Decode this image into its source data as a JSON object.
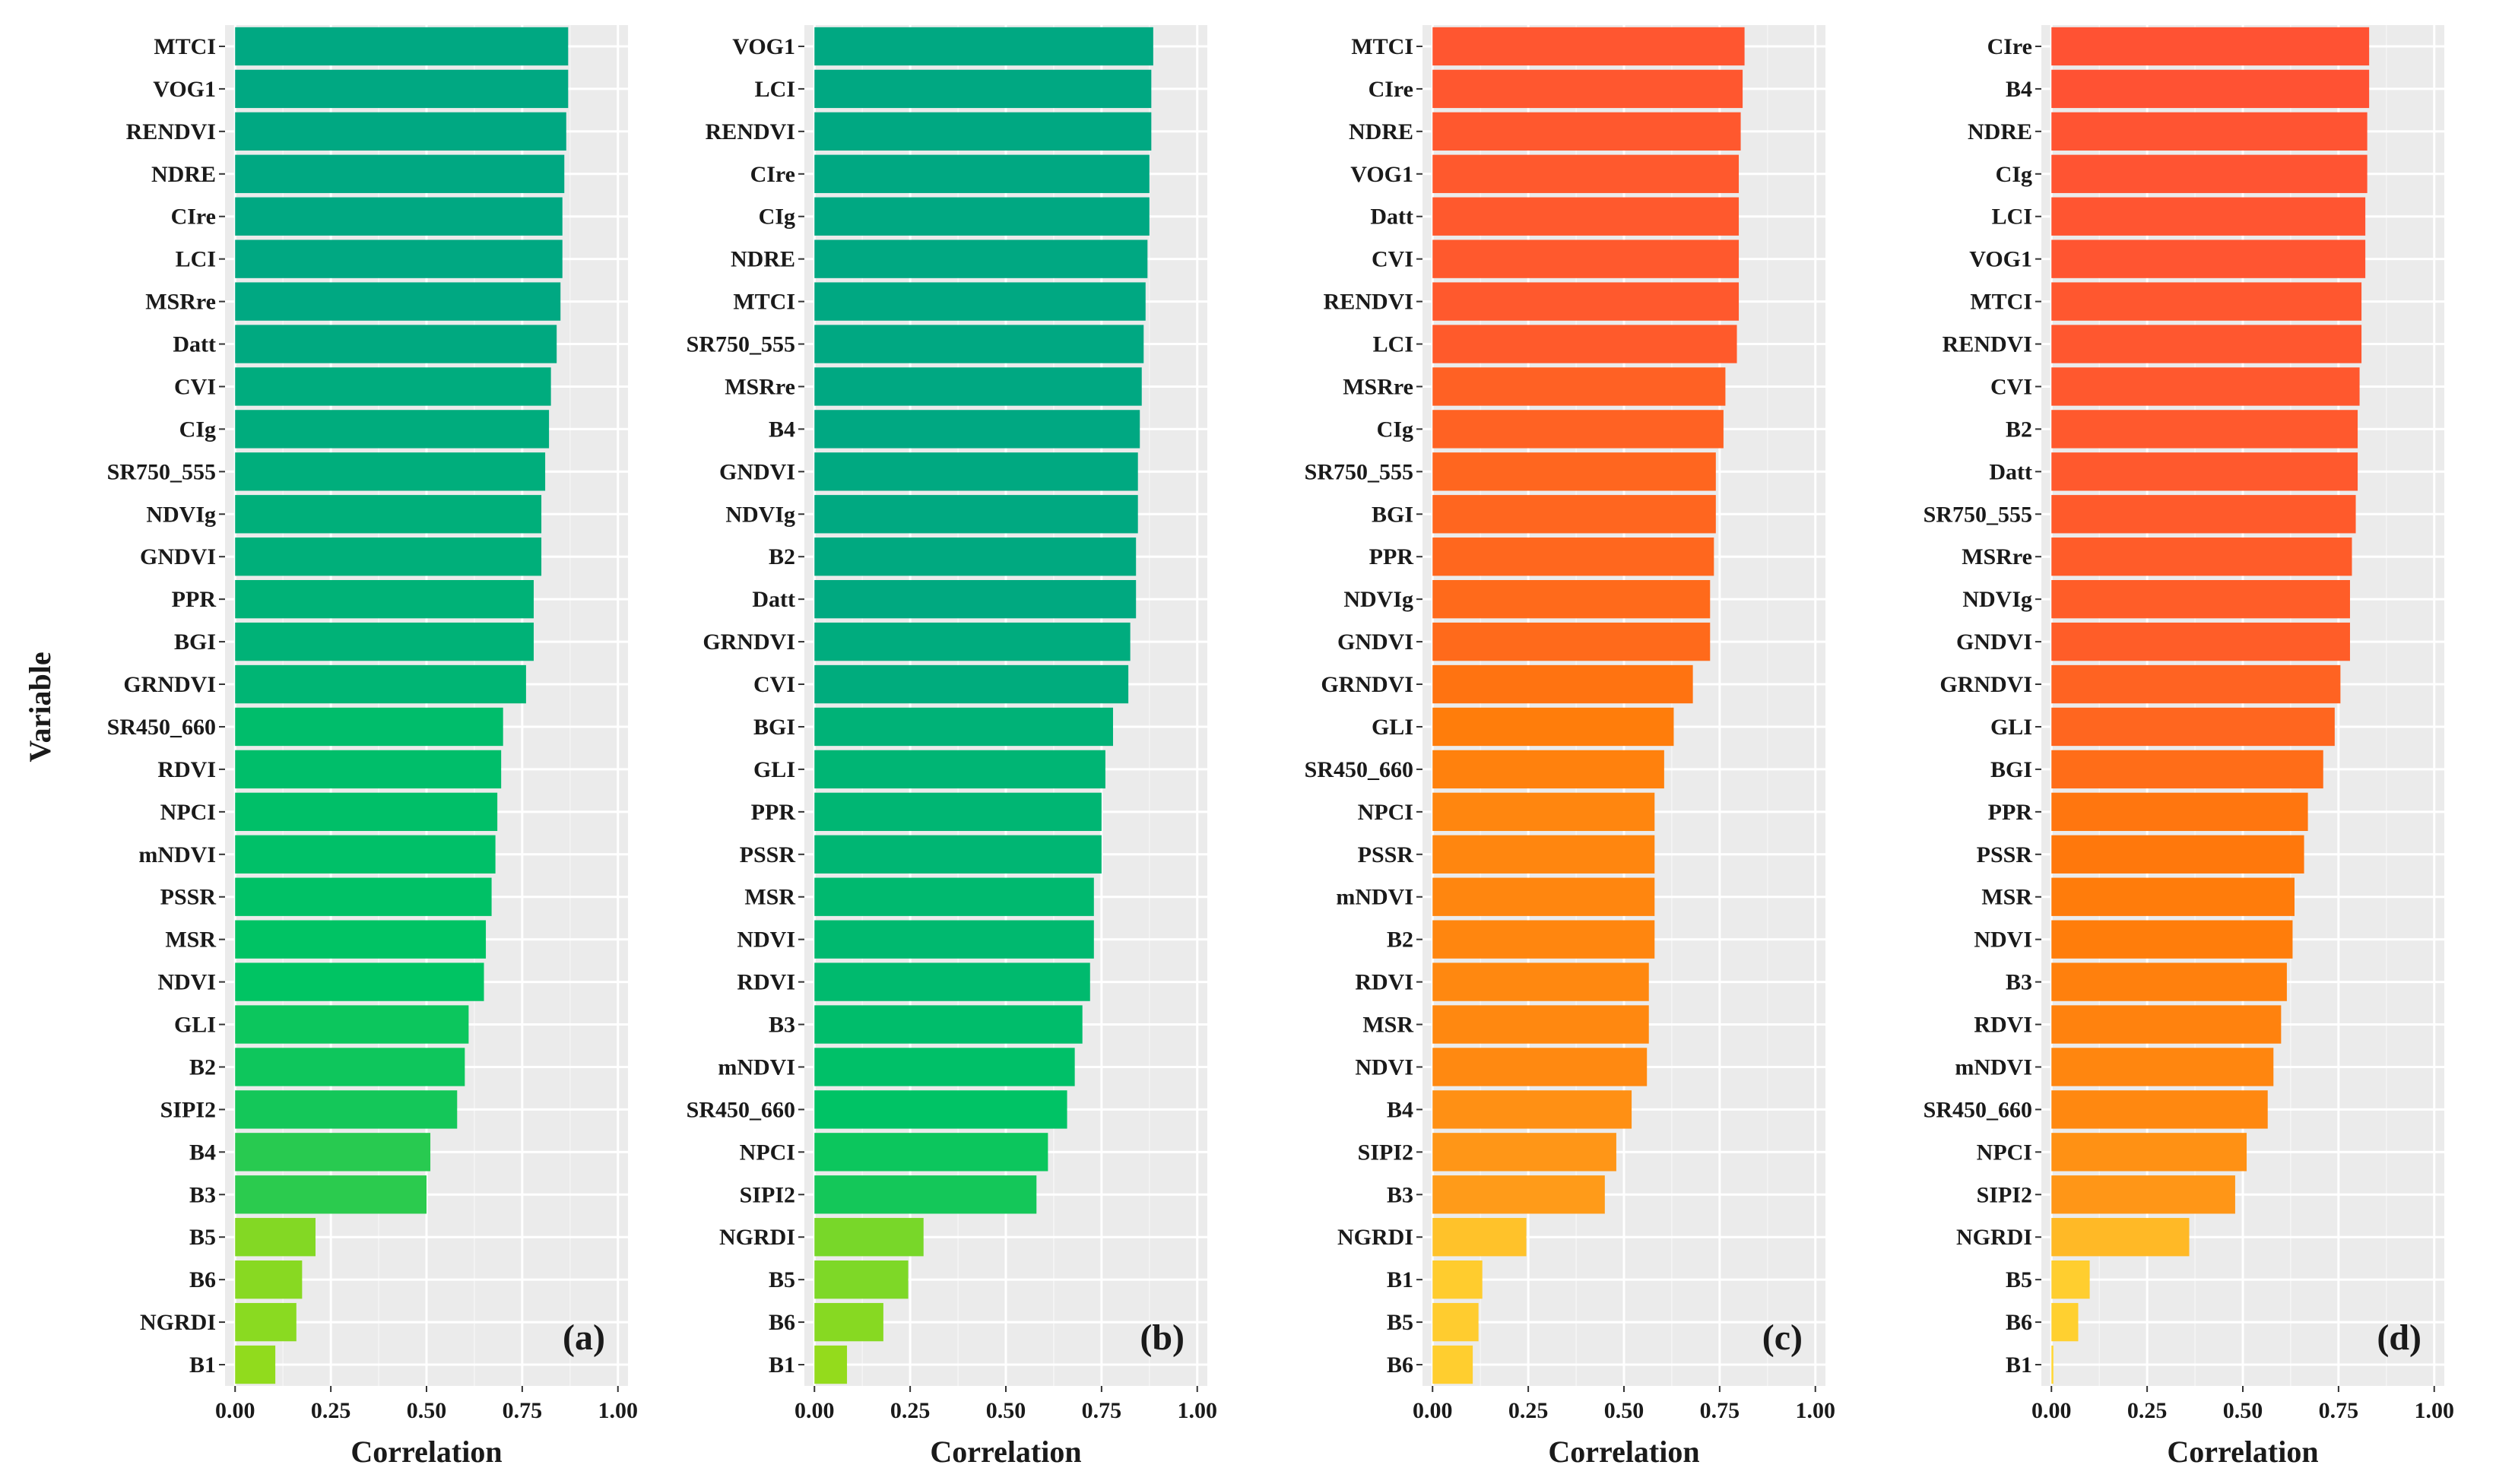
{
  "figure": {
    "ylabel": "Variable",
    "xlabel": "Correlation"
  },
  "chart_data": [
    {
      "type": "bar",
      "orientation": "horizontal",
      "panel_label": "(a)",
      "xlabel": "Correlation",
      "ylabel": "Variable",
      "xlim": [
        0,
        1.0
      ],
      "xticks": [
        "0.00",
        "0.25",
        "0.50",
        "0.75",
        "1.00"
      ],
      "grid": true,
      "color_scale": "green",
      "categories": [
        "MTCI",
        "VOG1",
        "RENDVI",
        "NDRE",
        "CIre",
        "LCI",
        "MSRre",
        "Datt",
        "CVI",
        "CIg",
        "SR750_555",
        "NDVIg",
        "GNDVI",
        "PPR",
        "BGI",
        "GRNDVI",
        "SR450_660",
        "RDVI",
        "NPCI",
        "mNDVI",
        "PSSR",
        "MSR",
        "NDVI",
        "GLI",
        "B2",
        "SIPI2",
        "B4",
        "B3",
        "B5",
        "B6",
        "NGRDI",
        "B1"
      ],
      "values": [
        0.87,
        0.87,
        0.865,
        0.86,
        0.855,
        0.855,
        0.85,
        0.84,
        0.825,
        0.82,
        0.81,
        0.8,
        0.8,
        0.78,
        0.78,
        0.76,
        0.7,
        0.695,
        0.685,
        0.68,
        0.67,
        0.655,
        0.65,
        0.61,
        0.6,
        0.58,
        0.51,
        0.5,
        0.21,
        0.175,
        0.16,
        0.105
      ]
    },
    {
      "type": "bar",
      "orientation": "horizontal",
      "panel_label": "(b)",
      "xlabel": "Correlation",
      "xlim": [
        0,
        1.0
      ],
      "xticks": [
        "0.00",
        "0.25",
        "0.50",
        "0.75",
        "1.00"
      ],
      "grid": true,
      "color_scale": "green",
      "categories": [
        "VOG1",
        "LCI",
        "RENDVI",
        "CIre",
        "CIg",
        "NDRE",
        "MTCI",
        "SR750_555",
        "MSRre",
        "B4",
        "GNDVI",
        "NDVIg",
        "B2",
        "Datt",
        "GRNDVI",
        "CVI",
        "BGI",
        "GLI",
        "PPR",
        "PSSR",
        "MSR",
        "NDVI",
        "RDVI",
        "B3",
        "mNDVI",
        "SR450_660",
        "NPCI",
        "SIPI2",
        "NGRDI",
        "B5",
        "B6",
        "B1"
      ],
      "values": [
        0.885,
        0.88,
        0.88,
        0.875,
        0.875,
        0.87,
        0.865,
        0.86,
        0.855,
        0.85,
        0.845,
        0.845,
        0.84,
        0.84,
        0.825,
        0.82,
        0.78,
        0.76,
        0.75,
        0.75,
        0.73,
        0.73,
        0.72,
        0.7,
        0.68,
        0.66,
        0.61,
        0.58,
        0.285,
        0.245,
        0.18,
        0.085
      ]
    },
    {
      "type": "bar",
      "orientation": "horizontal",
      "panel_label": "(c)",
      "xlabel": "Correlation",
      "xlim": [
        0,
        1.0
      ],
      "xticks": [
        "0.00",
        "0.25",
        "0.50",
        "0.75",
        "1.00"
      ],
      "grid": true,
      "color_scale": "red",
      "categories": [
        "MTCI",
        "CIre",
        "NDRE",
        "VOG1",
        "Datt",
        "CVI",
        "RENDVI",
        "LCI",
        "MSRre",
        "CIg",
        "SR750_555",
        "BGI",
        "PPR",
        "NDVIg",
        "GNDVI",
        "GRNDVI",
        "GLI",
        "SR450_660",
        "NPCI",
        "PSSR",
        "mNDVI",
        "B2",
        "RDVI",
        "MSR",
        "NDVI",
        "B4",
        "SIPI2",
        "B3",
        "NGRDI",
        "B1",
        "B5",
        "B6"
      ],
      "values": [
        0.815,
        0.81,
        0.805,
        0.8,
        0.8,
        0.8,
        0.8,
        0.795,
        0.765,
        0.76,
        0.74,
        0.74,
        0.735,
        0.725,
        0.725,
        0.68,
        0.63,
        0.605,
        0.58,
        0.58,
        0.58,
        0.58,
        0.565,
        0.565,
        0.56,
        0.52,
        0.48,
        0.45,
        0.245,
        0.13,
        0.12,
        0.105
      ]
    },
    {
      "type": "bar",
      "orientation": "horizontal",
      "panel_label": "(d)",
      "xlabel": "Correlation",
      "xlim": [
        0,
        1.0
      ],
      "xticks": [
        "0.00",
        "0.25",
        "0.50",
        "0.75",
        "1.00"
      ],
      "grid": true,
      "color_scale": "red",
      "categories": [
        "CIre",
        "B4",
        "NDRE",
        "CIg",
        "LCI",
        "VOG1",
        "MTCI",
        "RENDVI",
        "CVI",
        "B2",
        "Datt",
        "SR750_555",
        "MSRre",
        "NDVIg",
        "GNDVI",
        "GRNDVI",
        "GLI",
        "BGI",
        "PPR",
        "PSSR",
        "MSR",
        "NDVI",
        "B3",
        "RDVI",
        "mNDVI",
        "SR450_660",
        "NPCI",
        "SIPI2",
        "NGRDI",
        "B5",
        "B6",
        "B1"
      ],
      "values": [
        0.83,
        0.83,
        0.825,
        0.825,
        0.82,
        0.82,
        0.81,
        0.81,
        0.805,
        0.8,
        0.8,
        0.795,
        0.785,
        0.78,
        0.78,
        0.755,
        0.74,
        0.71,
        0.67,
        0.66,
        0.635,
        0.63,
        0.615,
        0.6,
        0.58,
        0.565,
        0.51,
        0.48,
        0.36,
        0.1,
        0.07,
        0.005
      ]
    }
  ],
  "colors": {
    "panel_bg": "#EBEBEB",
    "grid_major": "#FFFFFF",
    "text": "#1A1A1A",
    "green_high": "#00A882",
    "green_mid": "#00C463",
    "green_low": "#A0DD16",
    "red_high": "#FF4E38",
    "red_mid": "#FF7A0A",
    "red_low": "#FFD633"
  }
}
